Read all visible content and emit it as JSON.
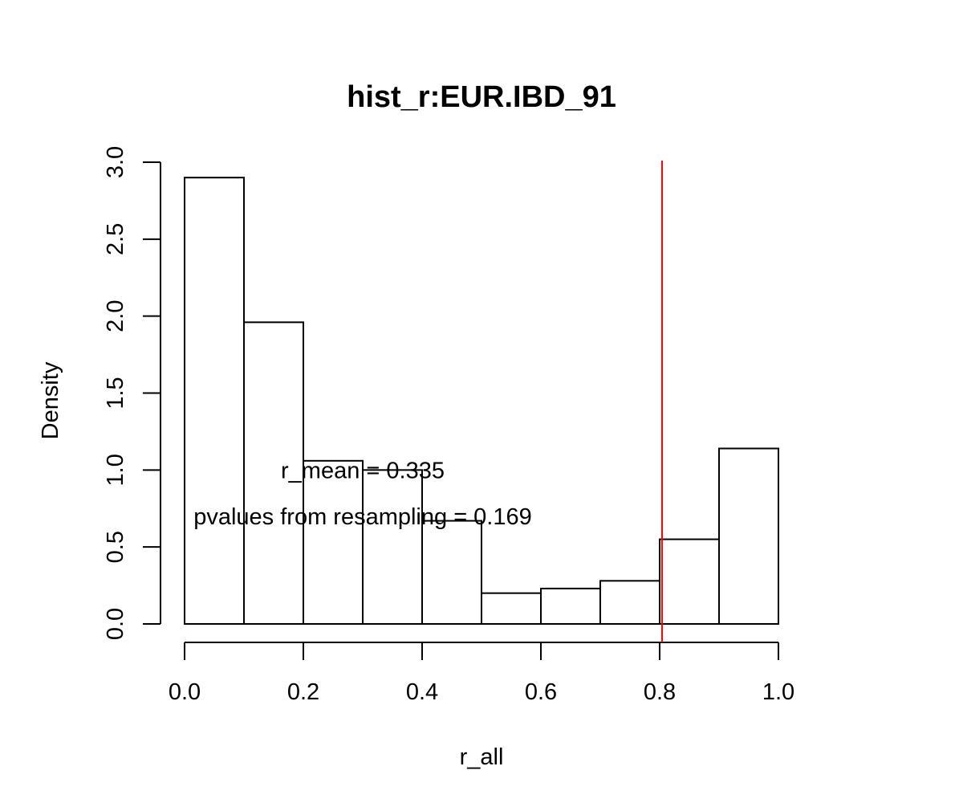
{
  "chart_data": {
    "type": "bar",
    "title": "hist_r:EUR.IBD_91",
    "xlabel": "r_all",
    "ylabel": "Density",
    "xlim": [
      0,
      1
    ],
    "ylim": [
      0,
      3
    ],
    "bins": [
      {
        "start": 0.0,
        "end": 0.1,
        "density": 2.9
      },
      {
        "start": 0.1,
        "end": 0.2,
        "density": 1.96
      },
      {
        "start": 0.2,
        "end": 0.3,
        "density": 1.06
      },
      {
        "start": 0.3,
        "end": 0.4,
        "density": 1.0
      },
      {
        "start": 0.4,
        "end": 0.5,
        "density": 0.67
      },
      {
        "start": 0.5,
        "end": 0.6,
        "density": 0.2
      },
      {
        "start": 0.6,
        "end": 0.7,
        "density": 0.23
      },
      {
        "start": 0.7,
        "end": 0.8,
        "density": 0.28
      },
      {
        "start": 0.8,
        "end": 0.9,
        "density": 0.55
      },
      {
        "start": 0.9,
        "end": 1.0,
        "density": 1.14
      }
    ],
    "x_ticks": [
      "0.0",
      "0.2",
      "0.4",
      "0.6",
      "0.8",
      "1.0"
    ],
    "y_ticks": [
      "0.0",
      "0.5",
      "1.0",
      "1.5",
      "2.0",
      "2.5",
      "3.0"
    ],
    "vline": {
      "x": 0.804,
      "color": "#ff0000"
    },
    "annotations": [
      {
        "text": "r_mean = 0.335",
        "x": 0.3,
        "y": 1.0
      },
      {
        "text": "pvalues from resampling = 0.169",
        "x": 0.3,
        "y": 0.7
      }
    ],
    "grid": false,
    "colors": {
      "bar_fill": "#ffffff",
      "bar_edge": "#000000",
      "vline": "#ff0000"
    }
  }
}
